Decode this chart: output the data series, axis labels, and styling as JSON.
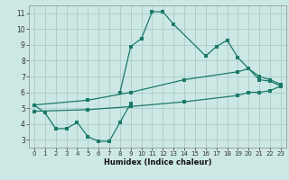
{
  "xlabel": "Humidex (Indice chaleur)",
  "bg_color": "#cce8e4",
  "grid_color": "#aaccc8",
  "line_color": "#1a7a6a",
  "ylim": [
    2.5,
    11.5
  ],
  "xlim": [
    -0.5,
    23.5
  ],
  "yticks": [
    3,
    4,
    5,
    6,
    7,
    8,
    9,
    10,
    11
  ],
  "xticks": [
    0,
    1,
    2,
    3,
    4,
    5,
    6,
    7,
    8,
    9,
    10,
    11,
    12,
    13,
    14,
    15,
    16,
    17,
    18,
    19,
    20,
    21,
    22,
    23
  ],
  "line1_x": [
    0,
    1,
    2,
    3,
    4,
    5,
    6,
    7,
    8,
    9
  ],
  "line1_y": [
    5.2,
    4.7,
    3.7,
    3.7,
    4.1,
    3.2,
    2.9,
    2.9,
    4.1,
    5.3
  ],
  "line2_x": [
    8,
    9,
    10,
    11,
    12,
    13,
    16,
    17,
    18,
    19,
    20,
    21,
    22,
    23
  ],
  "line2_y": [
    6.0,
    8.9,
    9.4,
    11.1,
    11.1,
    10.3,
    8.3,
    8.9,
    9.3,
    8.2,
    7.5,
    6.8,
    6.7,
    6.4
  ],
  "line3_x": [
    0,
    5,
    9,
    14,
    19,
    20,
    21,
    22,
    23
  ],
  "line3_y": [
    5.2,
    5.5,
    6.0,
    6.8,
    7.3,
    7.5,
    7.0,
    6.8,
    6.5
  ],
  "line4_x": [
    0,
    5,
    9,
    14,
    19,
    20,
    21,
    22,
    23
  ],
  "line4_y": [
    4.8,
    4.9,
    5.1,
    5.4,
    5.8,
    6.0,
    6.0,
    6.1,
    6.4
  ]
}
